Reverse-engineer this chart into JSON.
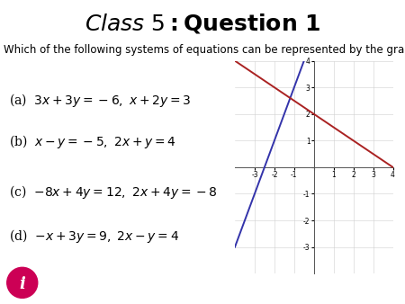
{
  "title_italic": "Class 5",
  "title_bold": ": Question 1",
  "subtitle": "Which of the following systems of equations can be represented by the graph below?",
  "options": [
    "(a)  $3x + 3y = -6,\\ x + 2y = 3$",
    "(b)  $x - y = -5,\\ 2x + y = 4$",
    "(c)  $-8x + 4y = 12,\\ 2x + 4y = -8$",
    "(d)  $-x + 3y = 9,\\ 2x - y = 4$"
  ],
  "graph": {
    "xlim": [
      -4,
      4
    ],
    "ylim": [
      -4,
      4
    ],
    "xticks": [
      -3,
      -2,
      -1,
      0,
      1,
      2,
      3,
      4
    ],
    "yticks": [
      -3,
      -2,
      -1,
      0,
      1,
      2,
      3,
      4
    ],
    "line1_color": "#3333aa",
    "line2_color": "#aa2222",
    "line1_slope": 2,
    "line1_intercept": 5,
    "line2_slope": -0.5,
    "line2_intercept": 2,
    "bg_color": "#ffffff"
  },
  "icon_color": "#cc0055",
  "title_fontsize": 18,
  "subtitle_fontsize": 8.5,
  "option_fontsize": 10,
  "fig_width": 4.5,
  "fig_height": 3.38,
  "fig_dpi": 100
}
